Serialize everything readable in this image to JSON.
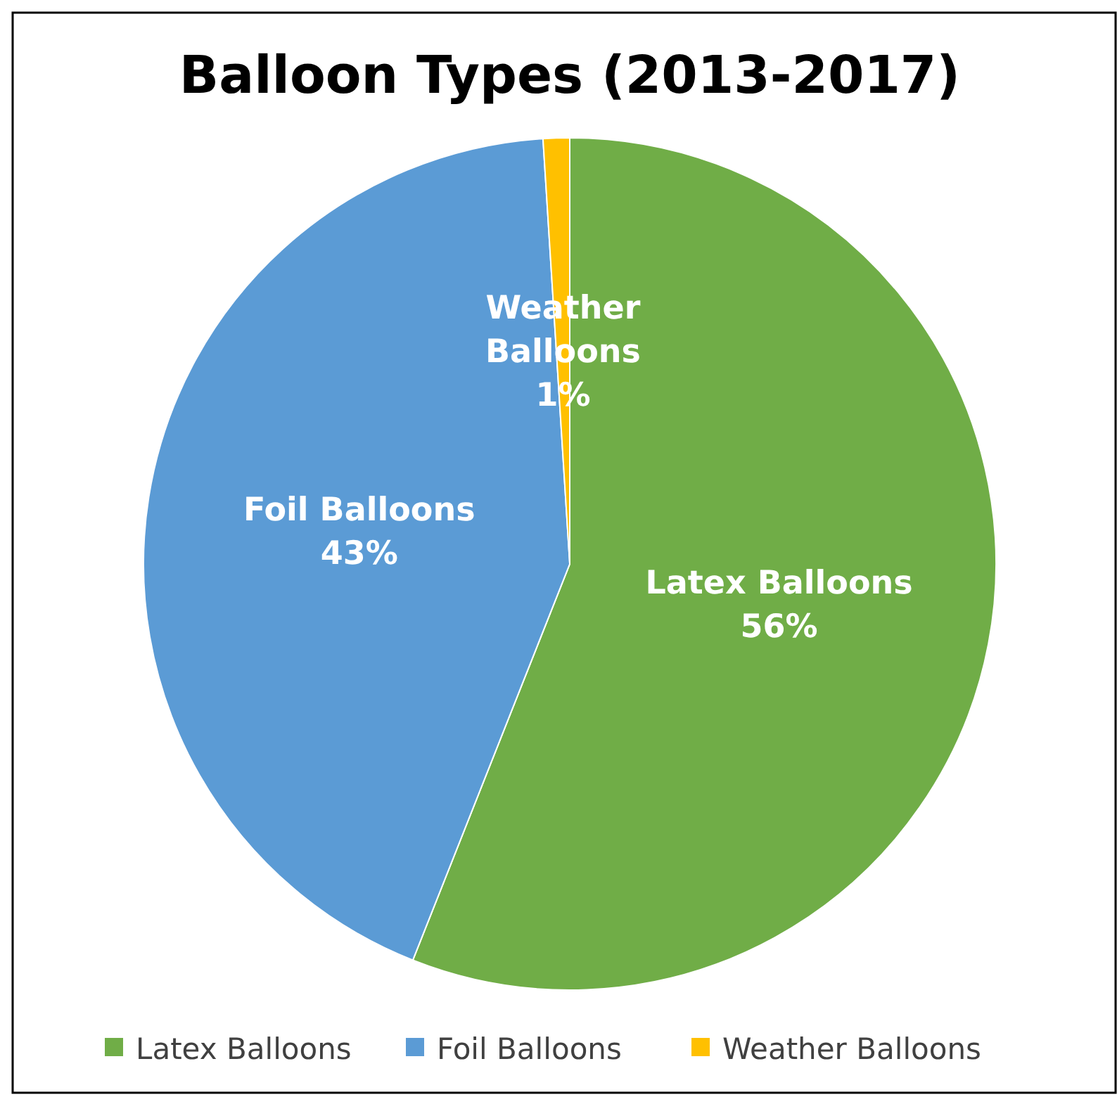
{
  "chart_data": {
    "type": "pie",
    "title": "Balloon Types (2013-2017)",
    "categories": [
      "Latex Balloons",
      "Foil Balloons",
      "Weather Balloons"
    ],
    "values": [
      56,
      43,
      1
    ],
    "value_labels": [
      "56%",
      "43%",
      "1%"
    ],
    "colors": [
      "#70ad47",
      "#5b9bd5",
      "#ffc000"
    ],
    "legend": "bottom"
  }
}
